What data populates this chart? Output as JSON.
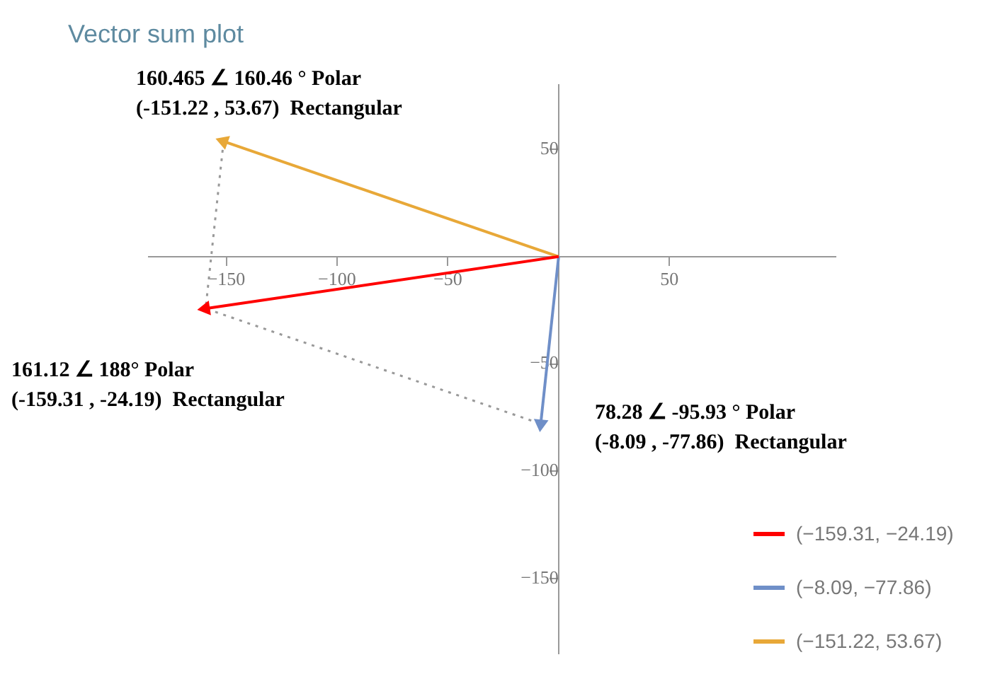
{
  "chart_data": {
    "type": "line",
    "title": "Vector sum plot",
    "xlim": [
      -185,
      125
    ],
    "ylim": [
      -185,
      80
    ],
    "xticks": [
      {
        "value": -150,
        "label": "−150"
      },
      {
        "value": -100,
        "label": "−100"
      },
      {
        "value": -50,
        "label": "−50"
      },
      {
        "value": 50,
        "label": "50"
      }
    ],
    "yticks": [
      {
        "value": -150,
        "label": "−150"
      },
      {
        "value": -100,
        "label": "−100"
      },
      {
        "value": -50,
        "label": "−50"
      },
      {
        "value": 50,
        "label": "50"
      }
    ],
    "grid": false,
    "legend": "bottom right",
    "series": [
      {
        "name": "(−159.31, −24.19)",
        "color": "#ff0000",
        "x": [
          0,
          -159.31
        ],
        "values": [
          0,
          -24.19
        ]
      },
      {
        "name": "(−8.09, −77.86)",
        "color": "#6f8fc8",
        "x": [
          0,
          -8.09
        ],
        "values": [
          0,
          -77.86
        ]
      },
      {
        "name": "(−151.22, 53.67)",
        "color": "#e8a838",
        "x": [
          0,
          -151.22
        ],
        "values": [
          0,
          53.67
        ]
      },
      {
        "color": "#999999",
        "line_style": "dotted",
        "x": [
          -151.22,
          -159.31,
          -8.09
        ],
        "values": [
          53.67,
          -24.19,
          -77.86
        ]
      }
    ],
    "annotations": [
      "160.465 ∠ 160.46 ° Polar",
      "(-151.22 , 53.67)  Rectangular",
      "161.12 ∠ 188° Polar",
      "(-159.31 , -24.19)  Rectangular",
      "78.28 ∠ -95.93 ° Polar",
      "(-8.09 , -77.86)  Rectangular"
    ]
  }
}
